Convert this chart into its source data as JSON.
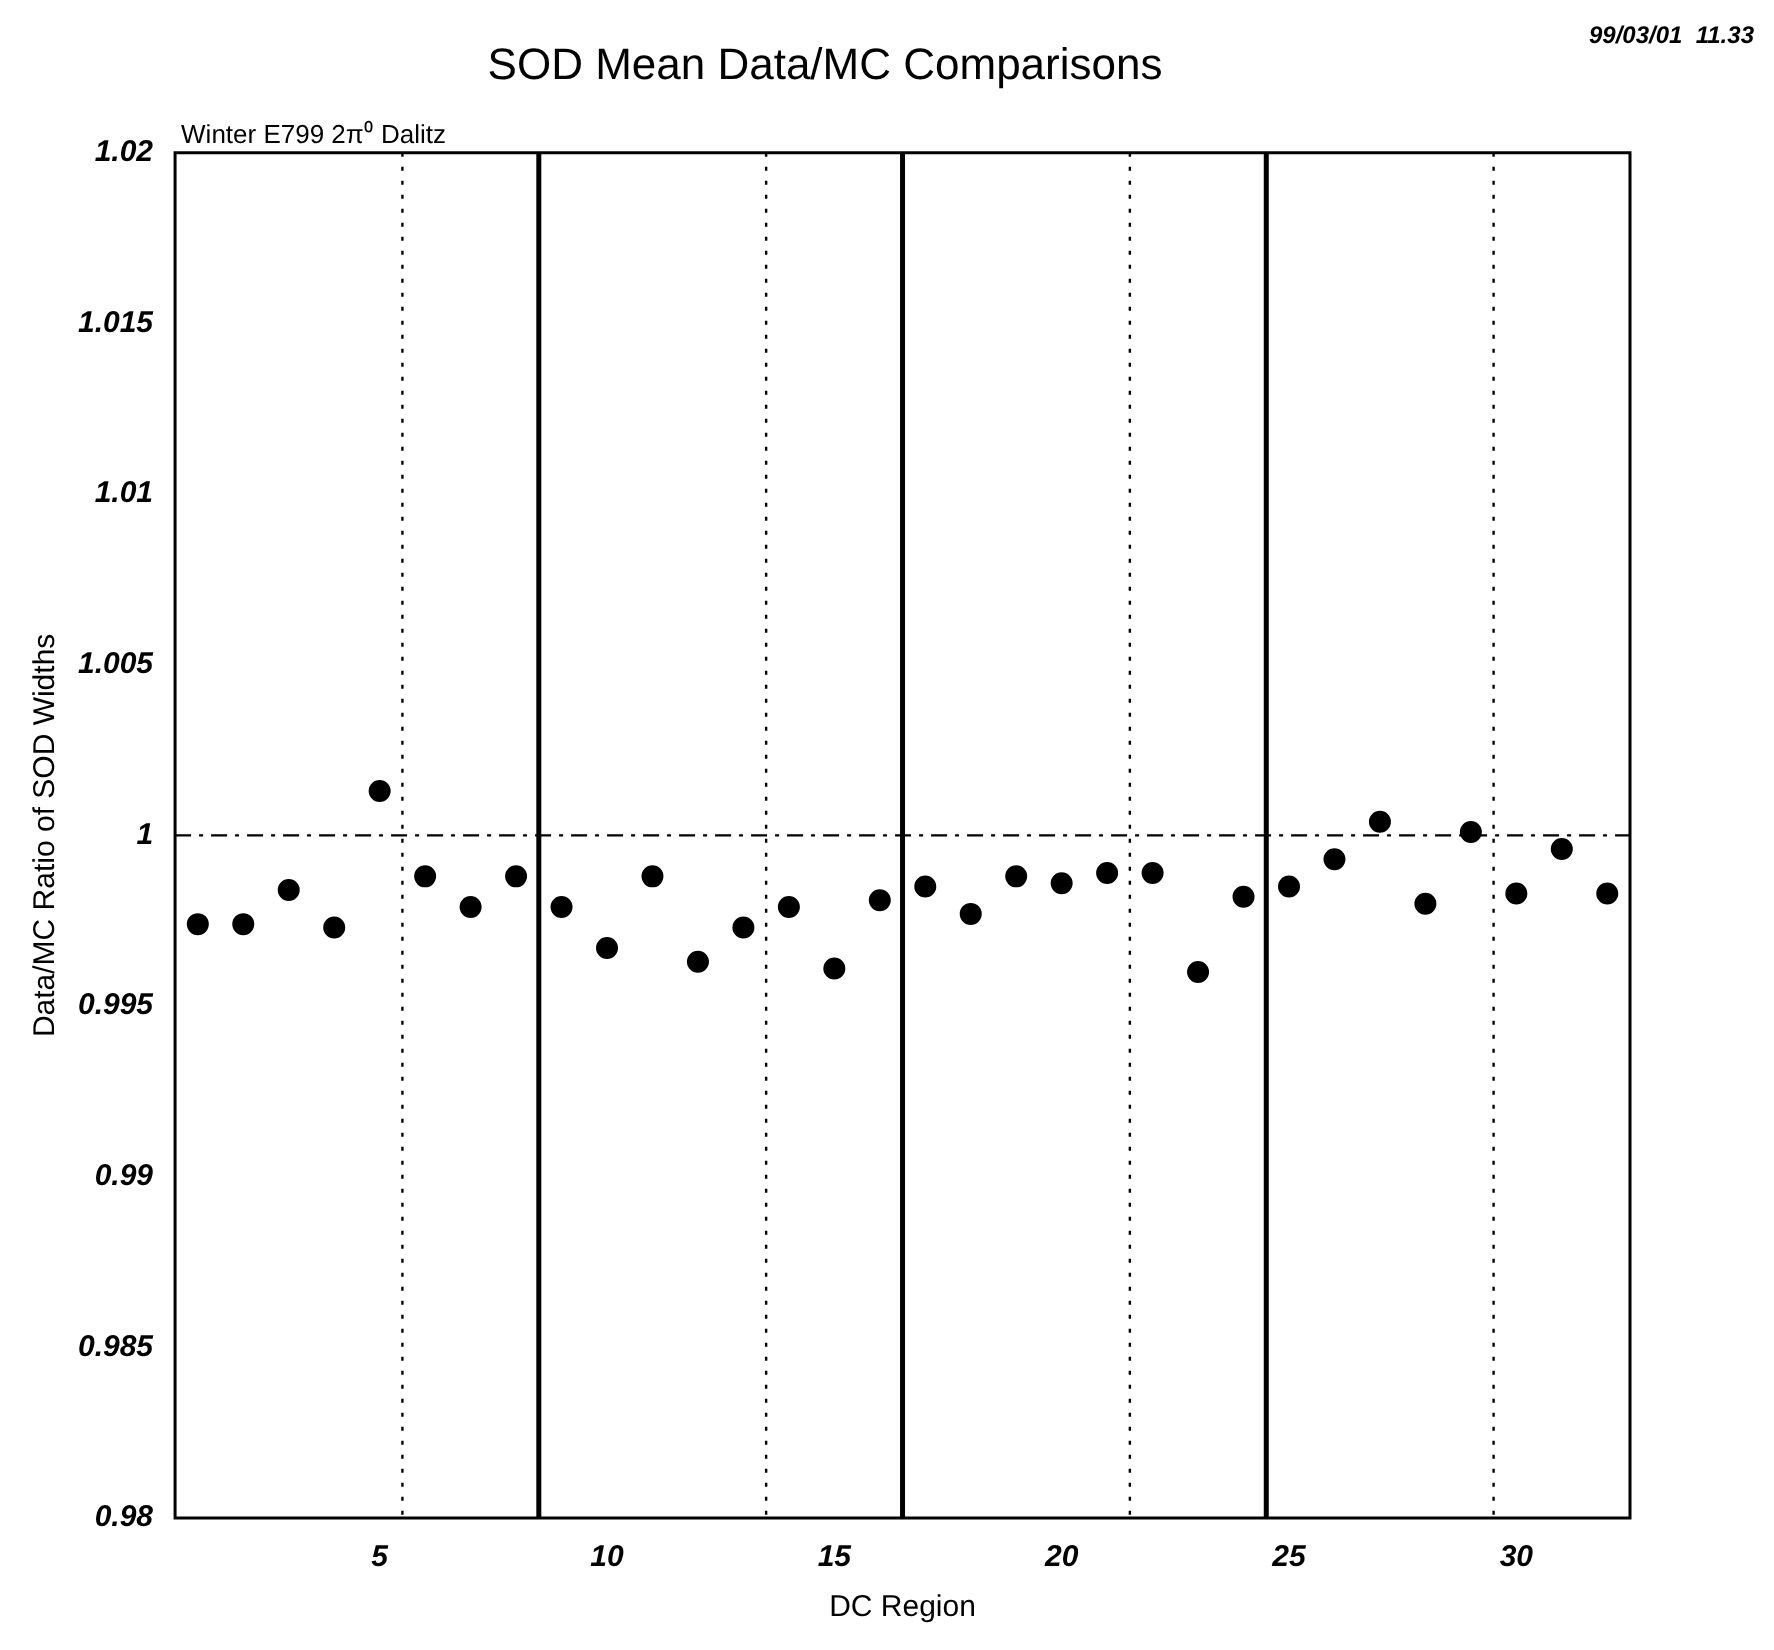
{
  "chart_data": {
    "type": "scatter",
    "title": "SOD Mean Data/MC Comparisons",
    "xlabel": "DC Region",
    "ylabel": "Data/MC Ratio of SOD Widths",
    "annotations": [
      "99/03/01  11.33",
      "Winter E799 2π⁰ Dalitz"
    ],
    "x": [
      1,
      2,
      3,
      4,
      5,
      6,
      7,
      8,
      9,
      10,
      11,
      12,
      13,
      14,
      15,
      16,
      17,
      18,
      19,
      20,
      21,
      22,
      23,
      24,
      25,
      26,
      27,
      28,
      29,
      30,
      31,
      32
    ],
    "series": [
      {
        "color": "#000000",
        "values": [
          0.9974,
          0.9974,
          0.9984,
          0.9973,
          1.0013,
          0.9988,
          0.9979,
          0.9988,
          0.9979,
          0.9967,
          0.9988,
          0.9963,
          0.9973,
          0.9979,
          0.9961,
          0.9981,
          0.9985,
          0.9977,
          0.9988,
          0.9986,
          0.9989,
          0.9989,
          0.996,
          0.9982,
          0.9985,
          0.9993,
          1.0004,
          0.998,
          1.0001,
          0.9983,
          0.9996,
          0.9983
        ],
        "errors": [
          null,
          null,
          null,
          null,
          null,
          null,
          null,
          null,
          null,
          null,
          null,
          null,
          null,
          null,
          0.00015,
          null,
          null,
          null,
          null,
          null,
          null,
          null,
          null,
          null,
          null,
          null,
          null,
          null,
          null,
          null,
          null,
          null
        ]
      }
    ],
    "xlim": [
      0.5,
      32.5
    ],
    "xticks": [
      5,
      10,
      15,
      20,
      25,
      30
    ],
    "ylim": [
      0.98,
      1.02
    ],
    "yticks": [
      0.98,
      0.985,
      0.99,
      0.995,
      1,
      1.005,
      1.01,
      1.015,
      1.02
    ],
    "ref_lines": [
      {
        "axis": "x",
        "value": 8.5,
        "line_style": "solid"
      },
      {
        "axis": "x",
        "value": 16.5,
        "line_style": "solid"
      },
      {
        "axis": "x",
        "value": 24.5,
        "line_style": "solid"
      },
      {
        "axis": "x",
        "value": 5.5,
        "line_style": "dotted"
      },
      {
        "axis": "x",
        "value": 13.5,
        "line_style": "dotted"
      },
      {
        "axis": "x",
        "value": 21.5,
        "line_style": "dotted"
      },
      {
        "axis": "x",
        "value": 29.5,
        "line_style": "dotted"
      },
      {
        "axis": "y",
        "value": 1,
        "line_style": "dashed"
      }
    ],
    "marker": "circle",
    "grid": false,
    "legend": false
  }
}
